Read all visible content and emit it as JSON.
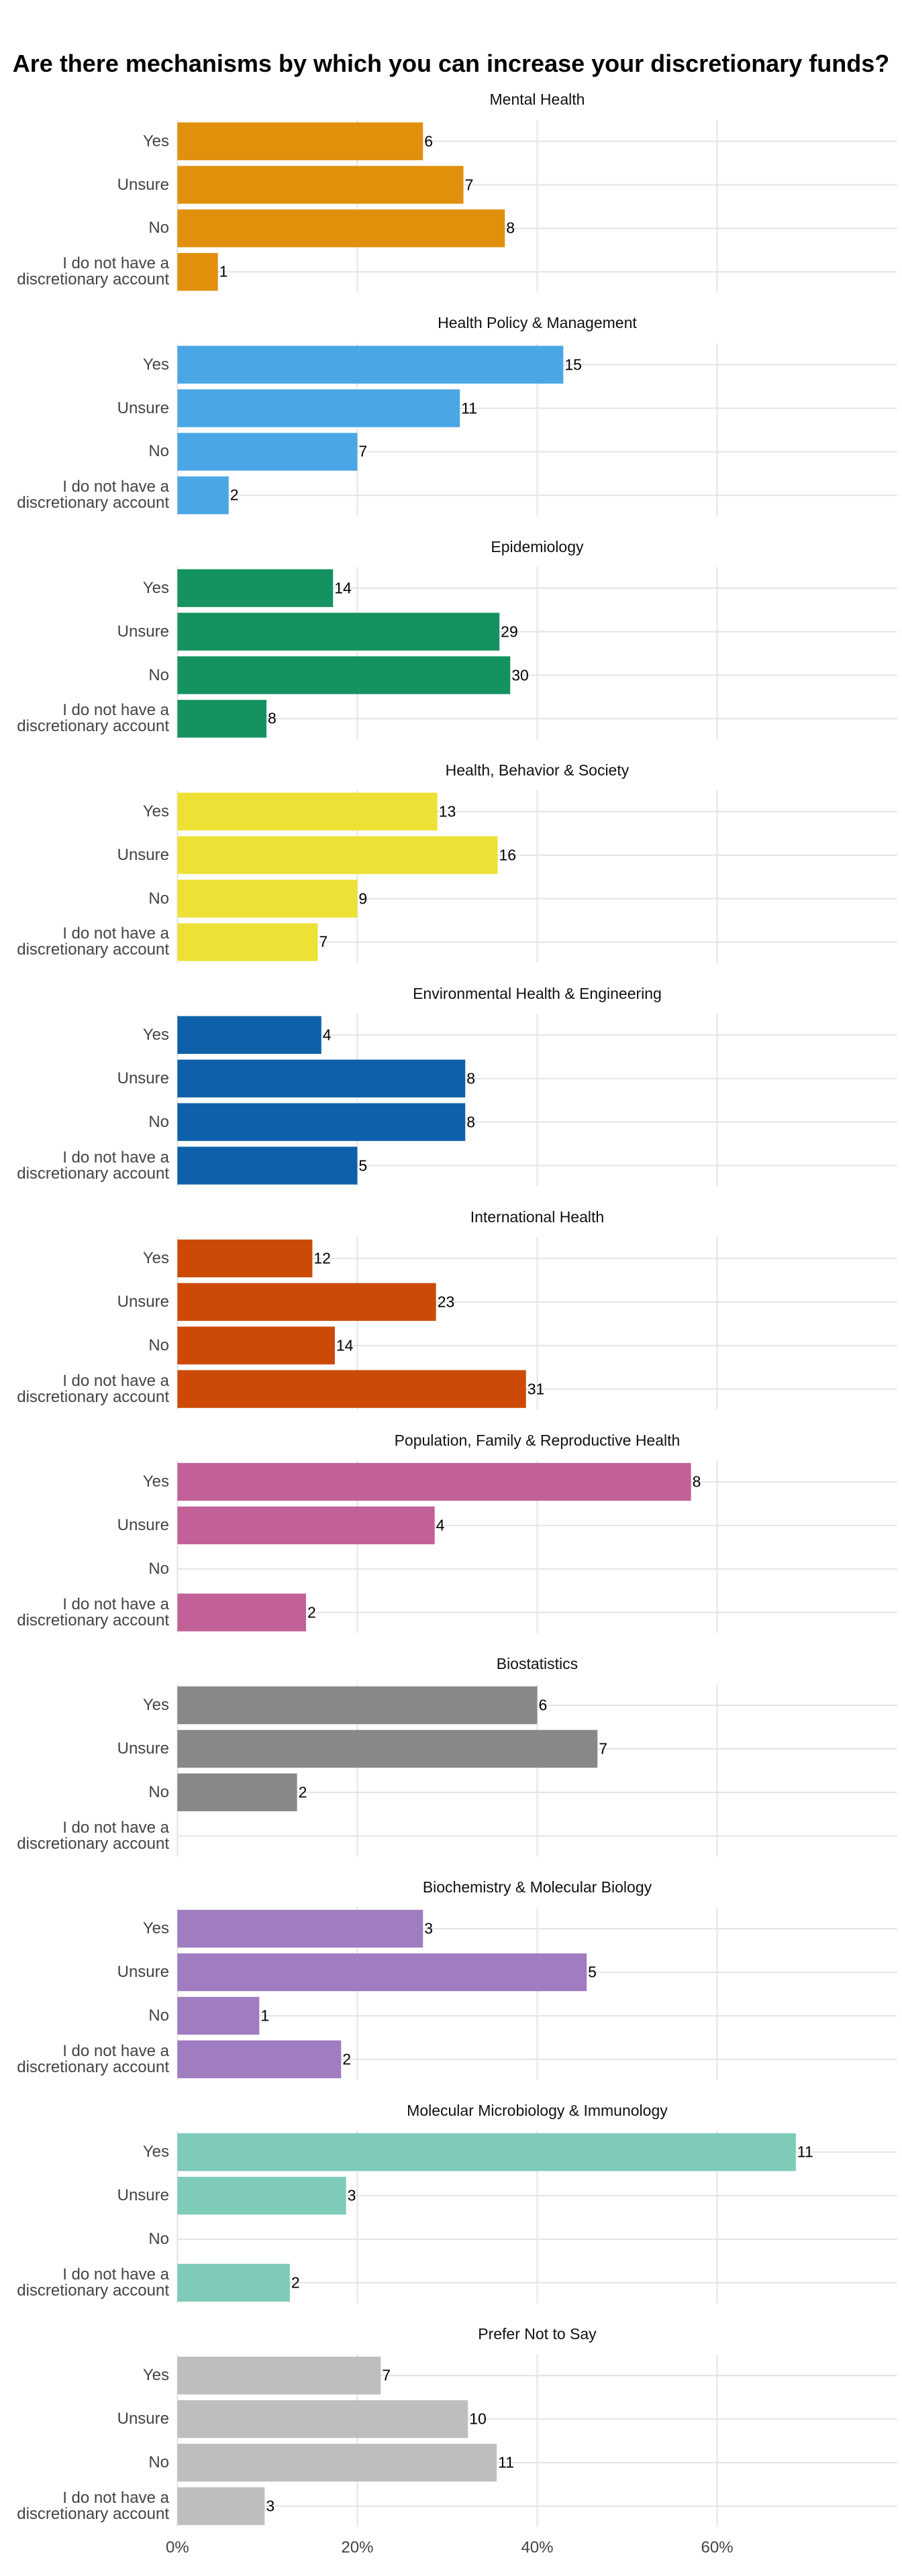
{
  "title": "Are there mechanisms by which you can increase your discretionary funds?",
  "xlim": [
    0,
    80
  ],
  "xticks": [
    {
      "value": 0,
      "label": "0%"
    },
    {
      "value": 20,
      "label": "20%"
    },
    {
      "value": 40,
      "label": "40%"
    },
    {
      "value": 60,
      "label": "60%"
    }
  ],
  "chart_data": [
    {
      "type": "bar",
      "title": "Mental Health",
      "color": "#e0900a",
      "categories": [
        "Yes",
        "Unsure",
        "No",
        "I do not have a\ndiscretionary account"
      ],
      "values": [
        27.3,
        31.8,
        36.4,
        4.5
      ],
      "counts": [
        6,
        7,
        8,
        1
      ]
    },
    {
      "type": "bar",
      "title": "Health Policy & Management",
      "color": "#4ba6e6",
      "categories": [
        "Yes",
        "Unsure",
        "No",
        "I do not have a\ndiscretionary account"
      ],
      "values": [
        42.9,
        31.4,
        20.0,
        5.7
      ],
      "counts": [
        15,
        11,
        7,
        2
      ]
    },
    {
      "type": "bar",
      "title": "Epidemiology",
      "color": "#14925f",
      "categories": [
        "Yes",
        "Unsure",
        "No",
        "I do not have a\ndiscretionary account"
      ],
      "values": [
        17.3,
        35.8,
        37.0,
        9.9
      ],
      "counts": [
        14,
        29,
        30,
        8
      ]
    },
    {
      "type": "bar",
      "title": "Health, Behavior & Society",
      "color": "#eee135",
      "categories": [
        "Yes",
        "Unsure",
        "No",
        "I do not have a\ndiscretionary account"
      ],
      "values": [
        28.9,
        35.6,
        20.0,
        15.6
      ],
      "counts": [
        13,
        16,
        9,
        7
      ]
    },
    {
      "type": "bar",
      "title": "Environmental Health & Engineering",
      "color": "#0e60a8",
      "categories": [
        "Yes",
        "Unsure",
        "No",
        "I do not have a\ndiscretionary account"
      ],
      "values": [
        16,
        32,
        32,
        20
      ],
      "counts": [
        4,
        8,
        8,
        5
      ]
    },
    {
      "type": "bar",
      "title": "International Health",
      "color": "#cc4a06",
      "categories": [
        "Yes",
        "Unsure",
        "No",
        "I do not have a\ndiscretionary account"
      ],
      "values": [
        15.0,
        28.75,
        17.5,
        38.75
      ],
      "counts": [
        12,
        23,
        14,
        31
      ]
    },
    {
      "type": "bar",
      "title": "Population, Family & Reproductive Health",
      "color": "#c16197",
      "categories": [
        "Yes",
        "Unsure",
        "No",
        "I do not have a\ndiscretionary account"
      ],
      "values": [
        57.1,
        28.6,
        null,
        14.3
      ],
      "counts": [
        8,
        4,
        null,
        2
      ]
    },
    {
      "type": "bar",
      "title": "Biostatistics",
      "color": "#888888",
      "categories": [
        "Yes",
        "Unsure",
        "No",
        "I do not have a\ndiscretionary account"
      ],
      "values": [
        40.0,
        46.7,
        13.3,
        null
      ],
      "counts": [
        6,
        7,
        2,
        null
      ]
    },
    {
      "type": "bar",
      "title": "Biochemistry & Molecular Biology",
      "color": "#a07cc0",
      "categories": [
        "Yes",
        "Unsure",
        "No",
        "I do not have a\ndiscretionary account"
      ],
      "values": [
        27.3,
        45.5,
        9.1,
        18.2
      ],
      "counts": [
        3,
        5,
        1,
        2
      ]
    },
    {
      "type": "bar",
      "title": "Molecular Microbiology & Immunology",
      "color": "#7fcbb9",
      "categories": [
        "Yes",
        "Unsure",
        "No",
        "I do not have a\ndiscretionary account"
      ],
      "values": [
        68.75,
        18.75,
        null,
        12.5
      ],
      "counts": [
        11,
        3,
        null,
        2
      ]
    },
    {
      "type": "bar",
      "title": "Prefer Not to Say",
      "color": "#bebebe",
      "categories": [
        "Yes",
        "Unsure",
        "No",
        "I do not have a\ndiscretionary account"
      ],
      "values": [
        22.6,
        32.3,
        35.5,
        9.7
      ],
      "counts": [
        7,
        10,
        11,
        3
      ]
    }
  ]
}
